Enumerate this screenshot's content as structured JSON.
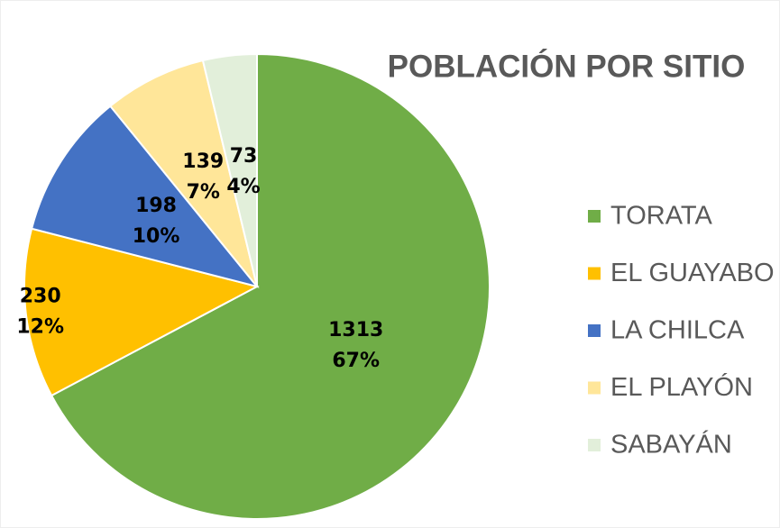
{
  "chart_data": {
    "type": "pie",
    "title": "POBLACIÓN POR SITIO",
    "categories": [
      "TORATA",
      "EL GUAYABO",
      "LA CHILCA",
      "EL PLAYÓN",
      "SABAYÁN"
    ],
    "values": [
      1313,
      230,
      198,
      139,
      73
    ],
    "percent_labels": [
      "67%",
      "12%",
      "10%",
      "7%",
      "4%"
    ],
    "colors": [
      "#70ad47",
      "#ffc000",
      "#4472c4",
      "#ffe699",
      "#e2efda"
    ],
    "legend": "right"
  }
}
